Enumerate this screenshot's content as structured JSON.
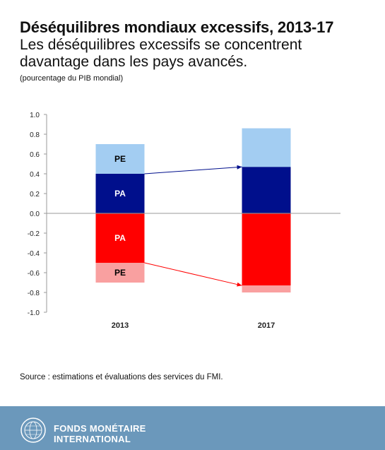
{
  "header": {
    "title": "Déséquilibres mondiaux excessifs, 2013-17",
    "subtitle": "Les déséquilibres excessifs se concentrent davantage dans les pays avancés.",
    "unit": "(pourcentage du PIB mondial)"
  },
  "chart_data": {
    "type": "bar",
    "stacked": true,
    "categories": [
      "2013",
      "2017"
    ],
    "series": [
      {
        "name": "PA",
        "values": [
          0.4,
          0.47
        ],
        "color": "#000f8c",
        "label_color": "#ffffff",
        "show_label": [
          true,
          false
        ]
      },
      {
        "name": "PE",
        "values": [
          0.3,
          0.39
        ],
        "color": "#a3cdf2",
        "label_color": "#000000",
        "show_label": [
          true,
          false
        ]
      },
      {
        "name": "PA",
        "values": [
          -0.5,
          -0.73
        ],
        "color": "#ff0000",
        "label_color": "#ffffff",
        "show_label": [
          true,
          false
        ]
      },
      {
        "name": "PE",
        "values": [
          -0.2,
          -0.07
        ],
        "color": "#f9a0a0",
        "label_color": "#000000",
        "show_label": [
          true,
          false
        ]
      }
    ],
    "ylim": [
      -1.0,
      1.0
    ],
    "yticks": [
      "1.0",
      "0.8",
      "0.6",
      "0.4",
      "0.2",
      "0.0",
      "-0.2",
      "-0.4",
      "-0.6",
      "-0.8",
      "-1.0"
    ],
    "arrows": [
      {
        "from": [
          0,
          0.4
        ],
        "to": [
          1,
          0.47
        ],
        "color": "#000f8c"
      },
      {
        "from": [
          0,
          -0.5
        ],
        "to": [
          1,
          -0.73
        ],
        "color": "#ff0000"
      }
    ],
    "xlabel": "",
    "ylabel": ""
  },
  "source": "Source : estimations et évaluations des services du FMI.",
  "footer": {
    "org_line1": "FONDS MONÉTAIRE",
    "org_line2": "INTERNATIONAL",
    "seal_icon": "imf-seal-icon"
  }
}
